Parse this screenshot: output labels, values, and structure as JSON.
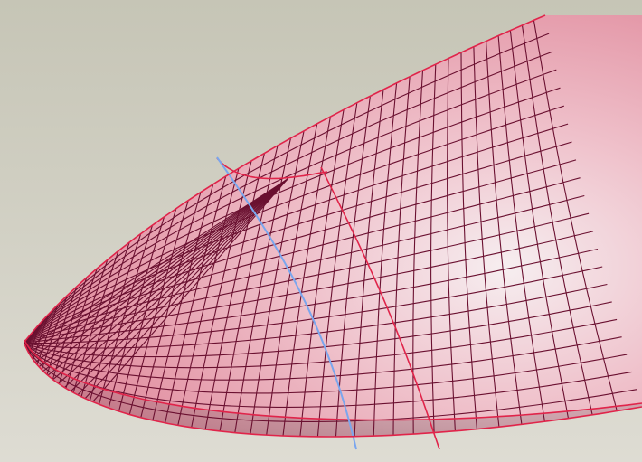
{
  "viewport": {
    "background_top": "#c6c5b6",
    "background_bottom": "#dedcd3"
  },
  "model": {
    "surface_fill_light": "#f6eef0",
    "surface_fill_mid": "#efc0ca",
    "surface_fill_dark": "#e08a9c",
    "mesh_color": "#6a1030",
    "boundary_color": "#e0244a",
    "highlight_curve_color": "#7aa6ee"
  }
}
